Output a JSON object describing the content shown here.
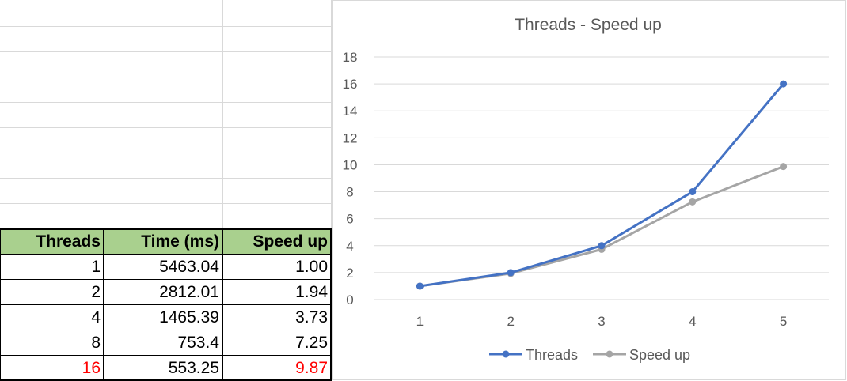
{
  "table": {
    "headers": [
      "Threads",
      "Time (ms)",
      "Speed up"
    ],
    "rows": [
      {
        "threads": "1",
        "time": "5463.04",
        "speedup": "1.00"
      },
      {
        "threads": "2",
        "time": "2812.01",
        "speedup": "1.94"
      },
      {
        "threads": "4",
        "time": "1465.39",
        "speedup": "3.73"
      },
      {
        "threads": "8",
        "time": "753.4",
        "speedup": "7.25"
      },
      {
        "threads": "16",
        "time": "553.25",
        "speedup": "9.87"
      }
    ],
    "header_color": "#a9d08e",
    "highlight_color": "#ff0000"
  },
  "chart_data": {
    "type": "line",
    "title": "Threads - Speed up",
    "xlabel": "",
    "ylabel": "",
    "categories": [
      "1",
      "2",
      "3",
      "4",
      "5"
    ],
    "series": [
      {
        "name": "Threads",
        "values": [
          1,
          2,
          4,
          8,
          16
        ],
        "color": "#4472c4"
      },
      {
        "name": "Speed up",
        "values": [
          1.0,
          1.94,
          3.73,
          7.25,
          9.87
        ],
        "color": "#a5a5a5"
      }
    ],
    "ylim": [
      0,
      18
    ],
    "yticks": [
      "0",
      "2",
      "4",
      "6",
      "8",
      "10",
      "12",
      "14",
      "16",
      "18"
    ],
    "grid": true,
    "legend": "bottom"
  }
}
